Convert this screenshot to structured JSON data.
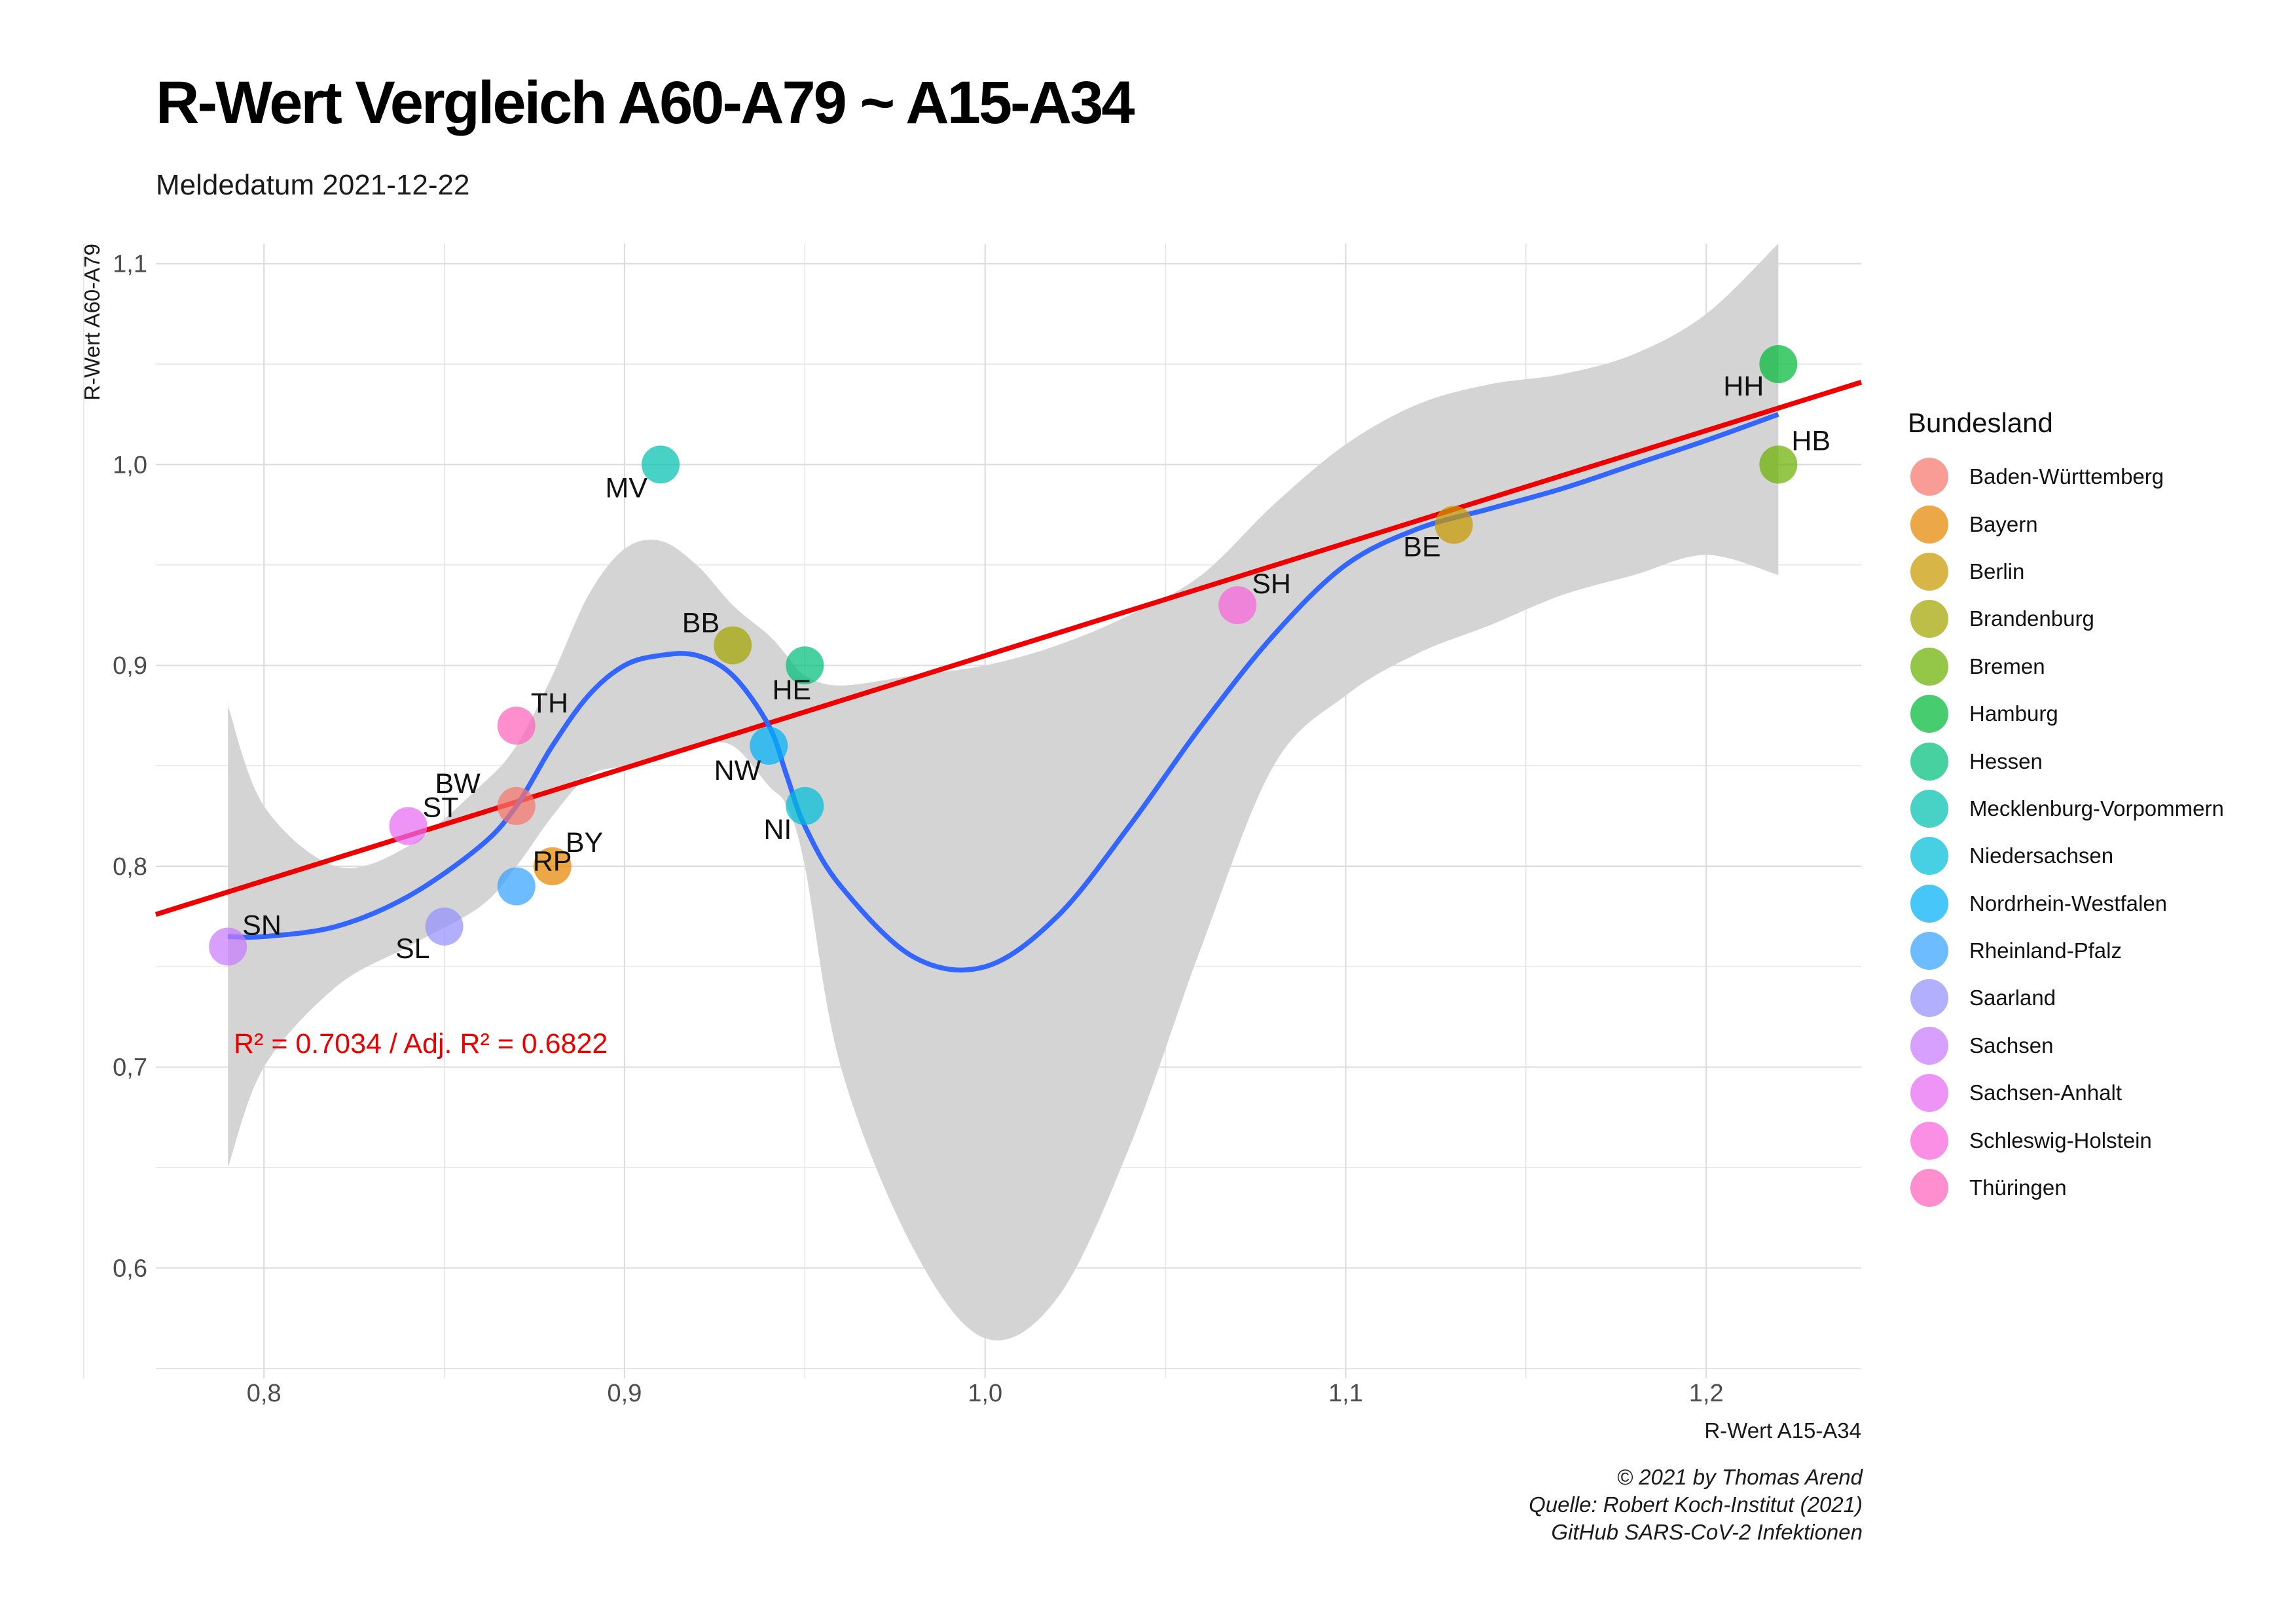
{
  "title": "R-Wert Vergleich A60-A79 ~ A15-A34",
  "subtitle": "Meldedatum 2021-12-22",
  "captions": [
    "© 2021 by Thomas Arend",
    "Quelle: Robert Koch-Institut (2021)",
    "GitHub SARS-CoV-2 Infektionen"
  ],
  "legend_title": "Bundesland",
  "annotation": "R² = 0.7034 / Adj. R² =  0.6822",
  "colors": {
    "regression_line": "#ee0000",
    "smooth_line": "#3366ff",
    "confidence_band": "#d4d4d4",
    "grid": "#dddddd",
    "annotation": "#ee0000"
  },
  "chart_data": {
    "type": "scatter",
    "xlabel": "R-Wert A15-A34",
    "ylabel": "R-Wert A60-A79",
    "xlim": [
      0.77,
      1.243
    ],
    "ylim": [
      0.545,
      1.11
    ],
    "x_ticks": [
      0.8,
      0.9,
      1.0,
      1.1,
      1.2
    ],
    "x_tick_labels": [
      "0,8",
      "0,9",
      "1,0",
      "1,1",
      "1,2"
    ],
    "y_ticks": [
      0.6,
      0.7,
      0.8,
      0.9,
      1.0,
      1.1
    ],
    "y_tick_labels": [
      "0,6",
      "0,7",
      "0,8",
      "0,9",
      "1,0",
      "1,1"
    ],
    "grid": true,
    "legend_position": "right",
    "series": [
      {
        "name": "Baden-Württemberg",
        "abbr": "BW",
        "x": 0.87,
        "y": 0.83,
        "color": "#f8766d"
      },
      {
        "name": "Bayern",
        "abbr": "BY",
        "x": 0.88,
        "y": 0.8,
        "color": "#e58700"
      },
      {
        "name": "Berlin",
        "abbr": "BE",
        "x": 1.13,
        "y": 0.97,
        "color": "#c99800"
      },
      {
        "name": "Brandenburg",
        "abbr": "BB",
        "x": 0.93,
        "y": 0.91,
        "color": "#a3a500"
      },
      {
        "name": "Bremen",
        "abbr": "HB",
        "x": 1.22,
        "y": 1.0,
        "color": "#6bb100"
      },
      {
        "name": "Hamburg",
        "abbr": "HH",
        "x": 1.22,
        "y": 1.05,
        "color": "#00ba38"
      },
      {
        "name": "Hessen",
        "abbr": "HE",
        "x": 0.95,
        "y": 0.9,
        "color": "#00bf7d"
      },
      {
        "name": "Mecklenburg-Vorpommern",
        "abbr": "MV",
        "x": 0.91,
        "y": 1.0,
        "color": "#00c0af"
      },
      {
        "name": "Niedersachsen",
        "abbr": "NI",
        "x": 0.95,
        "y": 0.83,
        "color": "#00bcd8"
      },
      {
        "name": "Nordrhein-Westfalen",
        "abbr": "NW",
        "x": 0.94,
        "y": 0.86,
        "color": "#00b0f6"
      },
      {
        "name": "Rheinland-Pfalz",
        "abbr": "RP",
        "x": 0.87,
        "y": 0.79,
        "color": "#35a2ff"
      },
      {
        "name": "Saarland",
        "abbr": "SL",
        "x": 0.85,
        "y": 0.77,
        "color": "#9590ff"
      },
      {
        "name": "Sachsen",
        "abbr": "SN",
        "x": 0.79,
        "y": 0.76,
        "color": "#c77cff"
      },
      {
        "name": "Sachsen-Anhalt",
        "abbr": "ST",
        "x": 0.84,
        "y": 0.82,
        "color": "#e76bf3"
      },
      {
        "name": "Schleswig-Holstein",
        "abbr": "SH",
        "x": 1.07,
        "y": 0.93,
        "color": "#fa62db"
      },
      {
        "name": "Thüringen",
        "abbr": "TH",
        "x": 0.87,
        "y": 0.87,
        "color": "#ff62bc"
      }
    ],
    "regression_line": {
      "x": [
        0.77,
        1.243
      ],
      "y": [
        0.776,
        1.041
      ]
    },
    "smooth_curve": {
      "x": [
        0.79,
        0.8,
        0.82,
        0.84,
        0.86,
        0.87,
        0.88,
        0.89,
        0.9,
        0.91,
        0.92,
        0.93,
        0.94,
        0.945,
        0.95,
        0.96,
        0.98,
        1.0,
        1.02,
        1.04,
        1.06,
        1.08,
        1.1,
        1.12,
        1.14,
        1.16,
        1.18,
        1.2,
        1.22
      ],
      "y": [
        0.765,
        0.765,
        0.77,
        0.785,
        0.81,
        0.83,
        0.86,
        0.885,
        0.9,
        0.905,
        0.905,
        0.895,
        0.87,
        0.845,
        0.82,
        0.79,
        0.755,
        0.75,
        0.775,
        0.82,
        0.87,
        0.915,
        0.95,
        0.968,
        0.978,
        0.988,
        1.0,
        1.012,
        1.025
      ]
    },
    "confidence_band": {
      "x": [
        0.79,
        0.8,
        0.82,
        0.84,
        0.86,
        0.87,
        0.88,
        0.89,
        0.9,
        0.91,
        0.92,
        0.93,
        0.94,
        0.945,
        0.95,
        0.96,
        0.98,
        1.0,
        1.02,
        1.04,
        1.06,
        1.08,
        1.1,
        1.12,
        1.14,
        1.16,
        1.18,
        1.2,
        1.22
      ],
      "upper": [
        0.88,
        0.83,
        0.8,
        0.81,
        0.84,
        0.86,
        0.895,
        0.935,
        0.958,
        0.962,
        0.95,
        0.93,
        0.915,
        0.905,
        0.895,
        0.89,
        0.895,
        0.9,
        0.91,
        0.925,
        0.945,
        0.98,
        1.01,
        1.03,
        1.04,
        1.045,
        1.055,
        1.075,
        1.11
      ],
      "lower": [
        0.65,
        0.7,
        0.74,
        0.76,
        0.78,
        0.8,
        0.825,
        0.845,
        0.85,
        0.855,
        0.86,
        0.86,
        0.84,
        0.83,
        0.8,
        0.7,
        0.61,
        0.565,
        0.585,
        0.66,
        0.76,
        0.85,
        0.885,
        0.906,
        0.92,
        0.935,
        0.945,
        0.955,
        0.945
      ]
    }
  }
}
